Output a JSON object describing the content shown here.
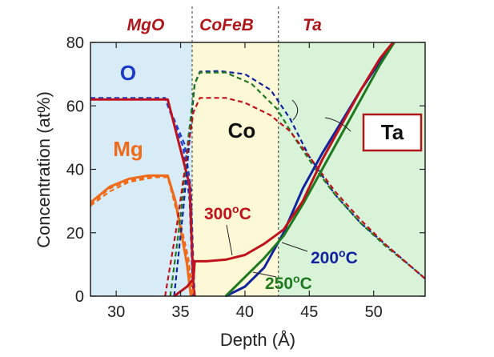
{
  "chart_data": {
    "type": "line",
    "xlabel": "Depth (Å)",
    "ylabel": "Concentration (at%)",
    "xlim": [
      28,
      54
    ],
    "ylim": [
      0,
      80
    ],
    "xticks": [
      "30",
      "35",
      "40",
      "45",
      "50"
    ],
    "yticks": [
      "0",
      "20",
      "40",
      "60",
      "80"
    ],
    "layers": [
      {
        "name": "MgO",
        "from": 28,
        "to": 35.9,
        "color": "#d8ecf8"
      },
      {
        "name": "CoFeB",
        "from": 35.9,
        "to": 42.6,
        "color": "#fdf9d6"
      },
      {
        "name": "Ta",
        "from": 42.6,
        "to": 54,
        "color": "#d9f3d9"
      }
    ],
    "element_labels": {
      "O": "O",
      "Mg": "Mg",
      "Co": "Co",
      "Ta": "Ta"
    },
    "temperature_labels": {
      "t300": "300",
      "t200": "200",
      "t250": "250",
      "sup": "o",
      "unit": "C"
    },
    "colors": {
      "t200": "#12239e",
      "t250": "#1f7a1f",
      "t300": "#c0121c",
      "O": "#1a3bcc",
      "Mg": "#ef6b1a",
      "Co": "#111111",
      "Ta": "#b0151a"
    },
    "series": [
      {
        "name": "O 200°C",
        "element": "O",
        "temp": "200",
        "style": "dashed",
        "points": [
          [
            28,
            62.5
          ],
          [
            33.8,
            62.5
          ],
          [
            35.3,
            48
          ],
          [
            35.8,
            34
          ],
          [
            36.0,
            10
          ],
          [
            36.1,
            0
          ]
        ]
      },
      {
        "name": "O 250°C",
        "element": "O",
        "temp": "250",
        "style": "dashed",
        "points": [
          [
            28,
            62.3
          ],
          [
            33.8,
            62.3
          ],
          [
            35.2,
            47
          ],
          [
            35.7,
            30
          ],
          [
            35.9,
            8
          ],
          [
            36.0,
            0
          ]
        ]
      },
      {
        "name": "O 300°C",
        "element": "O",
        "temp": "300",
        "style": "solid",
        "points": [
          [
            28,
            62
          ],
          [
            34,
            62
          ],
          [
            35.7,
            35
          ],
          [
            36.0,
            3
          ],
          [
            36.1,
            0
          ]
        ]
      },
      {
        "name": "Mg 200°C",
        "element": "Mg",
        "temp": "200",
        "style": "dashed",
        "points": [
          [
            28,
            29
          ],
          [
            29.5,
            34
          ],
          [
            31,
            36.5
          ],
          [
            33,
            37.8
          ],
          [
            34,
            37.8
          ],
          [
            35,
            23
          ],
          [
            35.6,
            12
          ],
          [
            36,
            0
          ]
        ]
      },
      {
        "name": "Mg 250°C",
        "element": "Mg",
        "temp": "250",
        "style": "dashed",
        "points": [
          [
            28,
            28.5
          ],
          [
            29.5,
            33
          ],
          [
            31,
            36
          ],
          [
            33,
            37.5
          ],
          [
            34,
            37.5
          ],
          [
            35,
            22
          ],
          [
            35.6,
            10
          ],
          [
            35.9,
            0
          ]
        ]
      },
      {
        "name": "Mg 300°C",
        "element": "Mg",
        "temp": "300",
        "style": "solid",
        "points": [
          [
            28,
            29.5
          ],
          [
            29.5,
            34.5
          ],
          [
            31,
            37
          ],
          [
            32.5,
            38
          ],
          [
            34,
            38
          ],
          [
            34.6,
            30
          ],
          [
            35.5,
            10
          ],
          [
            35.8,
            0
          ]
        ]
      },
      {
        "name": "Co 200°C",
        "element": "Co",
        "temp": "200",
        "style": "dashed",
        "points": [
          [
            34.5,
            0
          ],
          [
            35.2,
            27
          ],
          [
            35.8,
            54
          ],
          [
            36.1,
            67
          ],
          [
            36.5,
            70.8
          ],
          [
            38,
            71
          ],
          [
            40,
            70
          ],
          [
            42,
            65
          ],
          [
            43.5,
            56
          ],
          [
            45,
            44
          ],
          [
            47,
            32
          ],
          [
            49,
            23
          ],
          [
            51,
            16
          ],
          [
            53,
            9
          ],
          [
            54,
            5.5
          ]
        ]
      },
      {
        "name": "Co 250°C",
        "element": "Co",
        "temp": "250",
        "style": "dashed",
        "points": [
          [
            34.2,
            0
          ],
          [
            35,
            25
          ],
          [
            35.6,
            50
          ],
          [
            36.1,
            67
          ],
          [
            36.5,
            70.5
          ],
          [
            38.5,
            70.5
          ],
          [
            40.5,
            67
          ],
          [
            42.5,
            59
          ],
          [
            44,
            49
          ],
          [
            45.5,
            40
          ],
          [
            47,
            32
          ],
          [
            49,
            23
          ],
          [
            51,
            15.5
          ],
          [
            53,
            9
          ],
          [
            54,
            5.5
          ]
        ]
      },
      {
        "name": "Co 300°C",
        "element": "Co",
        "temp": "300",
        "style": "dashed",
        "points": [
          [
            33.8,
            0
          ],
          [
            34.7,
            22
          ],
          [
            35.5,
            45
          ],
          [
            36,
            58
          ],
          [
            36.5,
            62.5
          ],
          [
            38.5,
            62.5
          ],
          [
            40,
            61
          ],
          [
            42,
            57
          ],
          [
            43.5,
            52
          ],
          [
            45,
            44
          ],
          [
            47,
            33
          ],
          [
            49,
            24
          ],
          [
            51,
            16
          ],
          [
            53,
            9
          ],
          [
            54,
            5.5
          ]
        ]
      },
      {
        "name": "Ta 200°C",
        "element": "Ta",
        "temp": "200",
        "style": "solid",
        "points": [
          [
            38.5,
            0
          ],
          [
            40,
            3
          ],
          [
            41.5,
            9
          ],
          [
            43,
            20
          ],
          [
            44.5,
            34
          ],
          [
            46,
            45
          ],
          [
            47.5,
            55
          ],
          [
            49,
            65
          ],
          [
            50.5,
            74
          ],
          [
            51.6,
            80
          ]
        ]
      },
      {
        "name": "Ta 250°C",
        "element": "Ta",
        "temp": "250",
        "style": "solid",
        "points": [
          [
            38.5,
            0
          ],
          [
            40,
            6
          ],
          [
            41.5,
            12
          ],
          [
            43,
            19
          ],
          [
            44.5,
            29
          ],
          [
            46,
            40
          ],
          [
            47.5,
            51
          ],
          [
            49,
            62
          ],
          [
            50.5,
            73
          ],
          [
            51.6,
            80
          ]
        ]
      },
      {
        "name": "Ta 300°C",
        "element": "Ta",
        "temp": "300",
        "style": "solid",
        "points": [
          [
            34.5,
            0
          ],
          [
            35.5,
            3
          ],
          [
            36,
            5.5
          ],
          [
            36.1,
            11
          ],
          [
            37,
            11
          ],
          [
            38.5,
            11.5
          ],
          [
            40,
            13
          ],
          [
            41.5,
            16.5
          ],
          [
            43,
            21
          ],
          [
            44.5,
            30
          ],
          [
            46,
            43
          ],
          [
            47.5,
            54
          ],
          [
            49,
            65
          ],
          [
            50.5,
            75
          ],
          [
            51.5,
            80
          ]
        ]
      }
    ]
  }
}
